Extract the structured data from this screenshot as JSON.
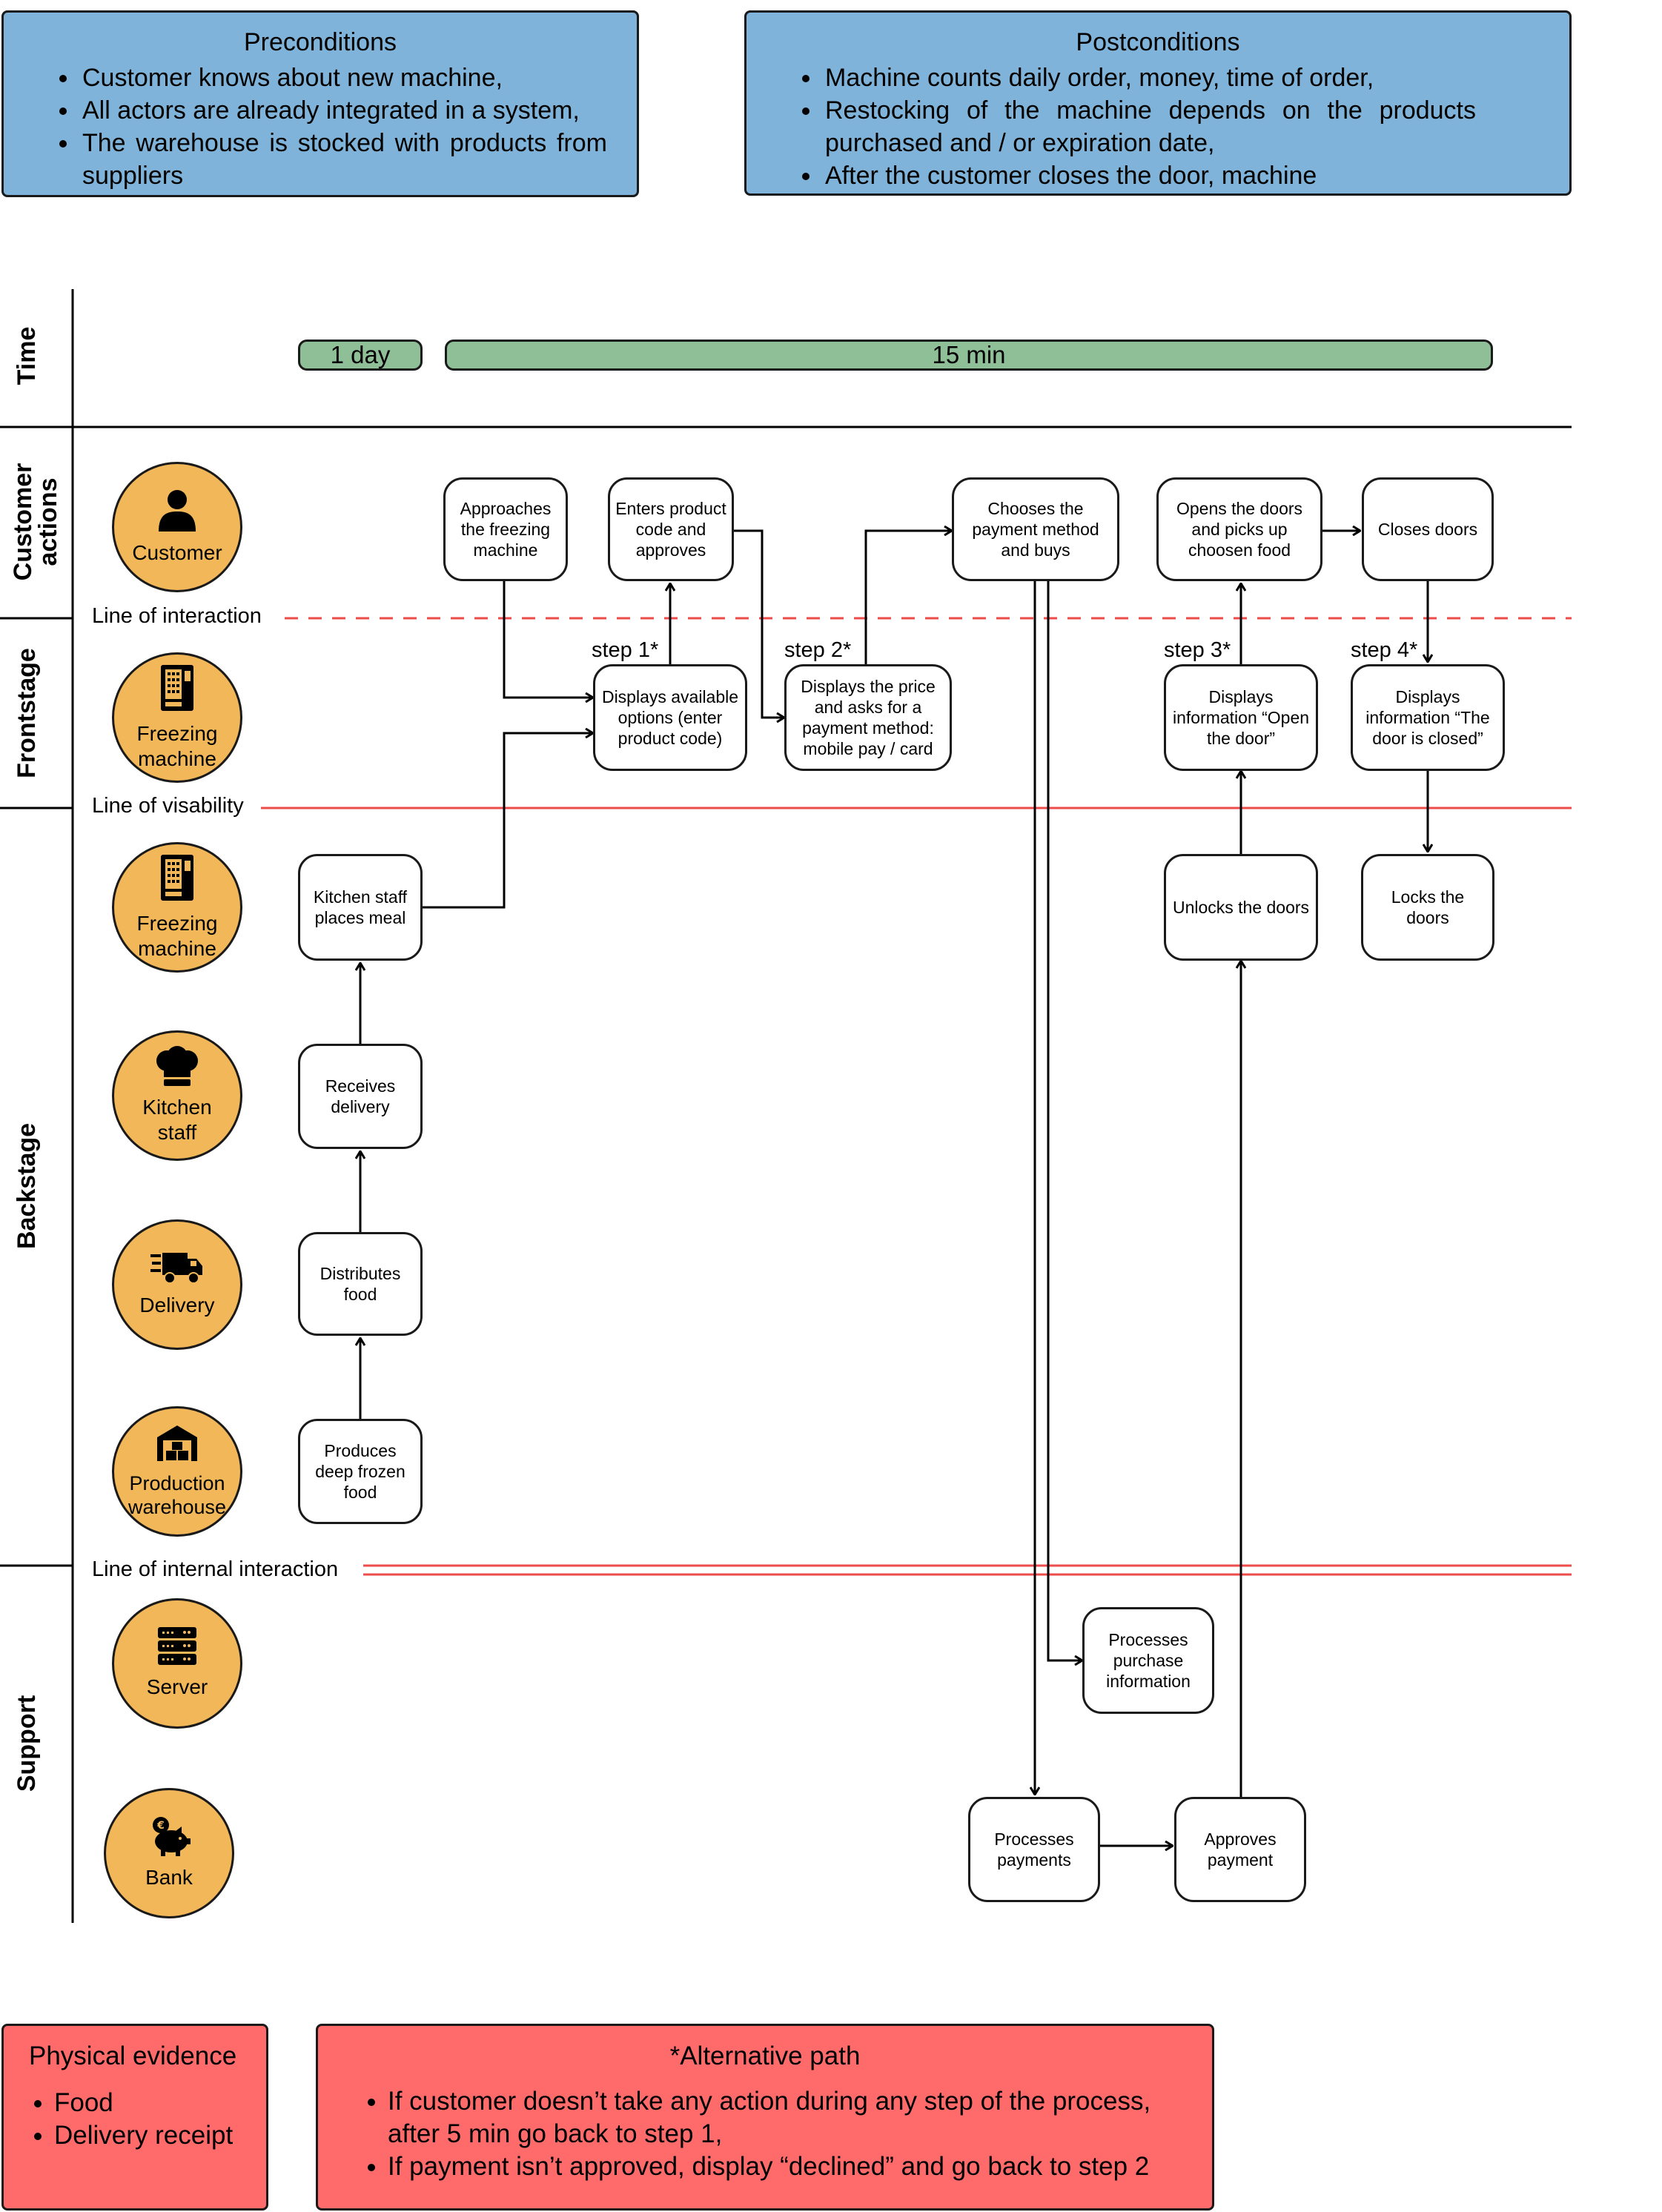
{
  "preconditions": {
    "title": "Preconditions",
    "items": [
      "Customer knows about new machine,",
      "All actors are already integrated in a system,",
      "The warehouse is stocked with products from suppliers"
    ]
  },
  "postconditions": {
    "title": "Postconditions",
    "items": [
      "Machine counts daily order, money, time of order,",
      "Restocking of the machine depends on the products purchased and / or expiration date,",
      "After the customer closes the door, machine"
    ]
  },
  "lanes": {
    "time": "Time",
    "customer_actions": "Customer actions",
    "frontstage": "Frontstage",
    "backstage": "Backstage",
    "support": "Support"
  },
  "time": {
    "day": "1 day",
    "min": "15 min"
  },
  "lines": {
    "interaction": "Line of interaction",
    "visibility": "Line of visability",
    "internal": "Line of internal interaction"
  },
  "actors": {
    "customer": "Customer",
    "freezing_front": "Freezing machine",
    "freezing_back": "Freezing machine",
    "kitchen": "Kitchen staff",
    "delivery": "Delivery",
    "warehouse": "Production warehouse",
    "server": "Server",
    "bank": "Bank"
  },
  "steps": {
    "approaches": "Approaches the freezing machine",
    "enters": "Enters product code and approves",
    "chooses": "Chooses the payment method and buys",
    "opens": "Opens the doors and picks up choosen food",
    "closes": "Closes doors",
    "displays_options": "Displays available options (enter product code)",
    "displays_price": "Displays the price and asks for a payment method: mobile pay / card",
    "displays_open": "Displays information “Open the door”",
    "displays_closed": "Displays information “The door is closed”",
    "kitchen_places": "Kitchen staff places meal",
    "unlocks": "Unlocks the doors",
    "locks": "Locks the doors",
    "receives": "Receives delivery",
    "distributes": "Distributes food",
    "produces": "Produces deep frozen food",
    "processes_purchase": "Processes purchase information",
    "processes_payments": "Processes payments",
    "approves_payment": "Approves payment"
  },
  "step_labels": {
    "s1": "step 1*",
    "s2": "step 2*",
    "s3": "step 3*",
    "s4": "step 4*"
  },
  "physical_evidence": {
    "title": "Physical evidence",
    "items": [
      "Food",
      "Delivery receipt"
    ]
  },
  "alternative_path": {
    "title": "*Alternative path",
    "items": [
      "If customer doesn’t take any action during any step of the process, after 5 min go back to step 1,",
      "If payment isn’t approved, display “declined” and go back to step 2"
    ]
  },
  "colors": {
    "blue_panel": "#7fb3d9",
    "red_panel": "#ff6b6b",
    "actor": "#f2b759",
    "time_bar": "#8ebf97",
    "line_red": "#ee4b4b"
  }
}
